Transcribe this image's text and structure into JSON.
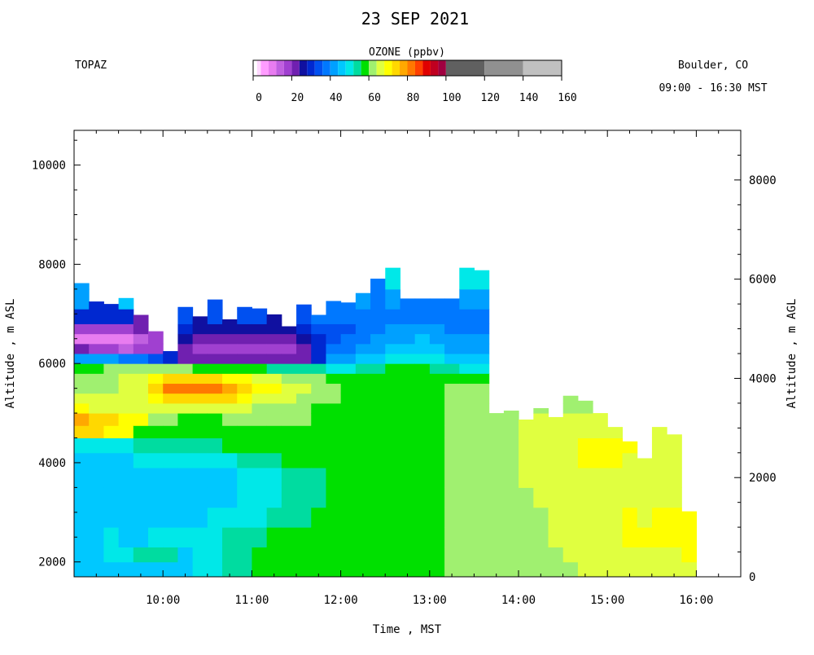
{
  "chart_data": {
    "type": "heatmap",
    "title": "23 SEP 2021",
    "instrument": "TOPAZ",
    "location": "Boulder, CO",
    "time_range": "09:00 - 16:30 MST",
    "colorbar": {
      "label": "OZONE (ppbv)",
      "tick_labels": [
        "0",
        "20",
        "40",
        "60",
        "80",
        "100",
        "120",
        "140",
        "160"
      ],
      "min": 0,
      "max": 160,
      "stops": [
        {
          "from": 0,
          "to": 2,
          "color": "#ffffff"
        },
        {
          "from": 2,
          "to": 4,
          "color": "#ffd8ff"
        },
        {
          "from": 4,
          "to": 8,
          "color": "#ff9cff"
        },
        {
          "from": 8,
          "to": 12,
          "color": "#e87cf0"
        },
        {
          "from": 12,
          "to": 16,
          "color": "#c060e0"
        },
        {
          "from": 16,
          "to": 20,
          "color": "#a040d0"
        },
        {
          "from": 20,
          "to": 24,
          "color": "#7020b0"
        },
        {
          "from": 24,
          "to": 28,
          "color": "#1010a0"
        },
        {
          "from": 28,
          "to": 32,
          "color": "#0028d0"
        },
        {
          "from": 32,
          "to": 36,
          "color": "#0050f0"
        },
        {
          "from": 36,
          "to": 40,
          "color": "#0078ff"
        },
        {
          "from": 40,
          "to": 44,
          "color": "#00a0ff"
        },
        {
          "from": 44,
          "to": 48,
          "color": "#00c8ff"
        },
        {
          "from": 48,
          "to": 52,
          "color": "#00e8e8"
        },
        {
          "from": 52,
          "to": 56,
          "color": "#00dca0"
        },
        {
          "from": 56,
          "to": 60,
          "color": "#00e000"
        },
        {
          "from": 60,
          "to": 64,
          "color": "#a0f070"
        },
        {
          "from": 64,
          "to": 68,
          "color": "#e0ff40"
        },
        {
          "from": 68,
          "to": 72,
          "color": "#ffff00"
        },
        {
          "from": 72,
          "to": 76,
          "color": "#ffd800"
        },
        {
          "from": 76,
          "to": 80,
          "color": "#ffa800"
        },
        {
          "from": 80,
          "to": 84,
          "color": "#ff7800"
        },
        {
          "from": 84,
          "to": 88,
          "color": "#ff4000"
        },
        {
          "from": 88,
          "to": 92,
          "color": "#e00000"
        },
        {
          "from": 92,
          "to": 96,
          "color": "#c00020"
        },
        {
          "from": 96,
          "to": 100,
          "color": "#a00040"
        },
        {
          "from": 100,
          "to": 120,
          "color": "#606060"
        },
        {
          "from": 120,
          "to": 140,
          "color": "#909090"
        },
        {
          "from": 140,
          "to": 160,
          "color": "#c0c0c0"
        }
      ]
    },
    "x": {
      "label": "Time , MST",
      "min": 9.0,
      "max": 16.5,
      "ticks": [
        10,
        11,
        12,
        13,
        14,
        15,
        16
      ],
      "tick_labels": [
        "10:00",
        "11:00",
        "12:00",
        "13:00",
        "14:00",
        "15:00",
        "16:00"
      ]
    },
    "y_left": {
      "label": "Altitude , m ASL",
      "min": 1700,
      "max": 10700,
      "ticks": [
        2000,
        4000,
        6000,
        8000,
        10000
      ],
      "tick_labels": [
        "2000",
        "4000",
        "6000",
        "8000",
        "10000"
      ]
    },
    "y_right": {
      "label": "Altitude , m AGL",
      "ticks": [
        0,
        2000,
        4000,
        6000,
        8000
      ],
      "tick_labels": [
        "0",
        "2000",
        "4000",
        "6000",
        "8000"
      ],
      "offset_m": 1700
    },
    "profile_interval_hours": 0.1667,
    "profile_top_altitude_m_asl": [
      7620,
      7250,
      7200,
      7320,
      6980,
      6650,
      6250,
      7140,
      6950,
      7290,
      6890,
      7140,
      7110,
      6990,
      6750,
      7190,
      6980,
      7260,
      7230,
      7420,
      7710,
      7930,
      7310,
      7310,
      7310,
      7310,
      7930,
      7880,
      5000,
      5050,
      4870,
      5100,
      4920,
      5350,
      5250,
      5000,
      4720,
      4430,
      4090,
      4720,
      4570,
      3020
    ],
    "levels_m_asl": [
      1700,
      2000,
      2300,
      2700,
      3100,
      3500,
      3900,
      4200,
      4500,
      4750,
      5000,
      5200,
      5400,
      5600,
      5800,
      6000,
      6200,
      6400,
      6600,
      6800,
      7100,
      7500,
      8000
    ],
    "ozone_ppbv_by_level": [
      {
        "alt_m_asl": 1850,
        "values": [
          44,
          44,
          46,
          46,
          44,
          44,
          46,
          46,
          48,
          48,
          52,
          52,
          56,
          56,
          56,
          58,
          58,
          58,
          58,
          58,
          58,
          58,
          58,
          58,
          58,
          60,
          60,
          60,
          60,
          62,
          62,
          62,
          62,
          62,
          64,
          64,
          64,
          64,
          64,
          64,
          64,
          64
        ]
      },
      {
        "alt_m_asl": 2150,
        "values": [
          46,
          46,
          48,
          48,
          52,
          52,
          52,
          46,
          48,
          50,
          52,
          54,
          56,
          56,
          58,
          58,
          58,
          58,
          58,
          58,
          58,
          58,
          58,
          58,
          58,
          60,
          60,
          60,
          60,
          62,
          62,
          62,
          62,
          64,
          64,
          64,
          64,
          64,
          66,
          66,
          66,
          68
        ]
      },
      {
        "alt_m_asl": 2500,
        "values": [
          46,
          46,
          48,
          46,
          46,
          48,
          48,
          48,
          50,
          50,
          52,
          52,
          54,
          56,
          58,
          56,
          58,
          58,
          58,
          58,
          58,
          58,
          58,
          58,
          58,
          60,
          60,
          62,
          62,
          62,
          62,
          62,
          64,
          64,
          66,
          66,
          66,
          68,
          68,
          68,
          68,
          68
        ]
      },
      {
        "alt_m_asl": 2900,
        "values": [
          46,
          46,
          44,
          46,
          46,
          46,
          46,
          46,
          46,
          48,
          48,
          50,
          50,
          52,
          54,
          54,
          58,
          58,
          56,
          58,
          58,
          58,
          58,
          58,
          58,
          60,
          60,
          62,
          62,
          62,
          62,
          62,
          64,
          64,
          64,
          66,
          66,
          68,
          66,
          68,
          68,
          68
        ]
      },
      {
        "alt_m_asl": 3300,
        "values": [
          44,
          44,
          44,
          44,
          44,
          44,
          46,
          46,
          46,
          46,
          46,
          48,
          48,
          50,
          52,
          52,
          54,
          56,
          56,
          58,
          58,
          58,
          58,
          58,
          58,
          60,
          60,
          62,
          62,
          62,
          62,
          64,
          64,
          64,
          64,
          66,
          66,
          66,
          66,
          66,
          66,
          66
        ]
      },
      {
        "alt_m_asl": 3700,
        "values": [
          44,
          44,
          44,
          46,
          46,
          46,
          46,
          46,
          46,
          46,
          46,
          48,
          48,
          50,
          52,
          52,
          54,
          56,
          56,
          58,
          58,
          58,
          58,
          58,
          58,
          60,
          60,
          62,
          62,
          62,
          64,
          64,
          64,
          66,
          66,
          66,
          66,
          66,
          66,
          66,
          66,
          66
        ]
      },
      {
        "alt_m_asl": 4050,
        "values": [
          46,
          46,
          46,
          46,
          48,
          48,
          48,
          50,
          50,
          50,
          50,
          52,
          52,
          54,
          56,
          56,
          58,
          58,
          58,
          58,
          58,
          58,
          58,
          58,
          58,
          60,
          60,
          62,
          62,
          62,
          64,
          64,
          66,
          66,
          68,
          68,
          68,
          66,
          66,
          66,
          66,
          66
        ]
      },
      {
        "alt_m_asl": 4350,
        "values": [
          48,
          48,
          48,
          48,
          52,
          52,
          52,
          54,
          54,
          54,
          56,
          56,
          56,
          56,
          58,
          58,
          58,
          58,
          58,
          58,
          58,
          58,
          58,
          58,
          58,
          60,
          60,
          62,
          62,
          62,
          64,
          64,
          66,
          66,
          68,
          68,
          68,
          68,
          66,
          66,
          66,
          66
        ]
      },
      {
        "alt_m_asl": 4625,
        "values": [
          74,
          74,
          70,
          68,
          56,
          56,
          56,
          58,
          58,
          58,
          58,
          58,
          58,
          58,
          58,
          58,
          58,
          58,
          58,
          58,
          58,
          58,
          58,
          58,
          58,
          60,
          60,
          62,
          62,
          62,
          64,
          64,
          66,
          66,
          66,
          66,
          66,
          66,
          66,
          66,
          66,
          66
        ]
      },
      {
        "alt_m_asl": 4875,
        "values": [
          76,
          74,
          72,
          70,
          68,
          62,
          62,
          58,
          58,
          58,
          60,
          60,
          62,
          62,
          62,
          60,
          58,
          58,
          58,
          58,
          58,
          58,
          58,
          58,
          58,
          60,
          60,
          62,
          62,
          62,
          64,
          64,
          64,
          64,
          64,
          64,
          64,
          64,
          64,
          64,
          64,
          0
        ]
      },
      {
        "alt_m_asl": 5100,
        "values": [
          68,
          66,
          66,
          66,
          66,
          66,
          66,
          66,
          66,
          66,
          66,
          64,
          62,
          62,
          62,
          60,
          58,
          58,
          58,
          58,
          58,
          58,
          58,
          58,
          58,
          60,
          60,
          62,
          62,
          62,
          62,
          62,
          62,
          60,
          62,
          62,
          0,
          0,
          0,
          0,
          0,
          0
        ]
      },
      {
        "alt_m_asl": 5300,
        "values": [
          64,
          64,
          64,
          64,
          66,
          70,
          72,
          72,
          72,
          72,
          72,
          70,
          66,
          66,
          64,
          62,
          60,
          60,
          58,
          58,
          58,
          58,
          58,
          58,
          58,
          60,
          60,
          62,
          0,
          0,
          0,
          0,
          0,
          0,
          60,
          0,
          0,
          0,
          0,
          0,
          0,
          0
        ]
      },
      {
        "alt_m_asl": 5500,
        "values": [
          62,
          62,
          62,
          64,
          66,
          74,
          80,
          82,
          82,
          80,
          78,
          74,
          70,
          68,
          66,
          64,
          60,
          60,
          58,
          58,
          58,
          58,
          58,
          58,
          58,
          60,
          60,
          60,
          0,
          0,
          0,
          0,
          0,
          0,
          0,
          0,
          0,
          0,
          0,
          0,
          0,
          0
        ]
      },
      {
        "alt_m_asl": 5700,
        "values": [
          60,
          60,
          62,
          64,
          66,
          70,
          72,
          74,
          74,
          72,
          70,
          68,
          66,
          64,
          62,
          62,
          60,
          58,
          58,
          58,
          58,
          58,
          58,
          58,
          58,
          58,
          58,
          58,
          0,
          0,
          0,
          0,
          0,
          0,
          0,
          0,
          0,
          0,
          0,
          0,
          0,
          0
        ]
      },
      {
        "alt_m_asl": 5900,
        "values": [
          58,
          58,
          60,
          60,
          62,
          62,
          60,
          60,
          58,
          58,
          56,
          56,
          56,
          54,
          52,
          52,
          52,
          50,
          50,
          52,
          54,
          56,
          56,
          56,
          54,
          52,
          50,
          48,
          0,
          0,
          0,
          0,
          0,
          0,
          0,
          0,
          0,
          0,
          0,
          0,
          0,
          0
        ]
      },
      {
        "alt_m_asl": 6100,
        "values": [
          40,
          40,
          40,
          38,
          36,
          34,
          30,
          22,
          20,
          20,
          20,
          20,
          20,
          20,
          20,
          22,
          30,
          40,
          42,
          44,
          46,
          48,
          48,
          50,
          48,
          46,
          44,
          44,
          0,
          0,
          0,
          0,
          0,
          0,
          0,
          0,
          0,
          0,
          0,
          0,
          0,
          0
        ]
      },
      {
        "alt_m_asl": 6300,
        "values": [
          22,
          18,
          16,
          14,
          18,
          16,
          28,
          20,
          18,
          18,
          18,
          18,
          18,
          16,
          18,
          20,
          28,
          36,
          38,
          40,
          42,
          44,
          44,
          46,
          44,
          42,
          40,
          42,
          0,
          0,
          0,
          0,
          0,
          0,
          0,
          0,
          0,
          0,
          0,
          0,
          0,
          0
        ]
      },
      {
        "alt_m_asl": 6500,
        "values": [
          10,
          8,
          8,
          8,
          14,
          16,
          0,
          24,
          22,
          22,
          22,
          22,
          22,
          20,
          22,
          24,
          30,
          34,
          36,
          38,
          40,
          42,
          42,
          44,
          42,
          40,
          40,
          40,
          0,
          0,
          0,
          0,
          0,
          0,
          0,
          0,
          0,
          0,
          0,
          0,
          0,
          0
        ]
      },
      {
        "alt_m_asl": 6700,
        "values": [
          18,
          16,
          16,
          16,
          20,
          0,
          0,
          28,
          26,
          26,
          26,
          24,
          24,
          26,
          26,
          28,
          32,
          34,
          34,
          36,
          38,
          40,
          40,
          42,
          40,
          38,
          38,
          38,
          0,
          0,
          0,
          0,
          0,
          0,
          0,
          0,
          0,
          0,
          0,
          0,
          0,
          0
        ]
      },
      {
        "alt_m_asl": 6950,
        "values": [
          30,
          28,
          28,
          28,
          0,
          0,
          0,
          34,
          0,
          32,
          0,
          32,
          32,
          0,
          0,
          34,
          36,
          36,
          36,
          36,
          38,
          38,
          38,
          38,
          38,
          38,
          36,
          36,
          0,
          0,
          0,
          0,
          0,
          0,
          0,
          0,
          0,
          0,
          0,
          0,
          0,
          0
        ]
      },
      {
        "alt_m_asl": 7300,
        "values": [
          40,
          0,
          0,
          44,
          0,
          0,
          0,
          0,
          0,
          0,
          0,
          0,
          0,
          0,
          0,
          0,
          0,
          0,
          0,
          40,
          38,
          40,
          0,
          0,
          0,
          0,
          40,
          40,
          0,
          0,
          0,
          0,
          0,
          0,
          0,
          0,
          0,
          0,
          0,
          0,
          0,
          0
        ]
      },
      {
        "alt_m_asl": 7750,
        "values": [
          0,
          0,
          0,
          0,
          0,
          0,
          0,
          0,
          0,
          0,
          0,
          0,
          0,
          0,
          0,
          0,
          0,
          0,
          0,
          0,
          0,
          48,
          0,
          0,
          0,
          0,
          50,
          50,
          0,
          0,
          0,
          0,
          0,
          0,
          0,
          0,
          0,
          0,
          0,
          0,
          0,
          0
        ]
      }
    ]
  }
}
